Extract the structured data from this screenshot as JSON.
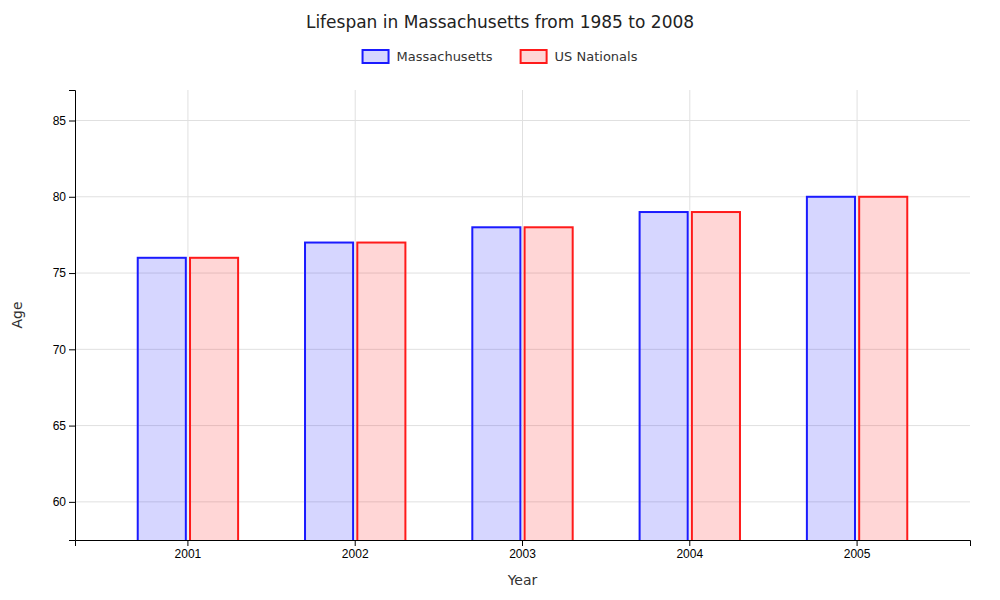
{
  "chart_data": {
    "type": "bar",
    "title": "Lifespan in Massachusetts from 1985 to 2008",
    "x_label": "Year",
    "y_label": "Age",
    "categories": [
      "2001",
      "2002",
      "2003",
      "2004",
      "2005"
    ],
    "series": [
      {
        "name": "Massachusetts",
        "color": "#1a1aff",
        "values": [
          76,
          77,
          78,
          79,
          80
        ]
      },
      {
        "name": "US Nationals",
        "color": "#ff1a1a",
        "values": [
          76,
          77,
          78,
          79,
          80
        ]
      }
    ],
    "ylim": [
      57.5,
      87
    ],
    "yticks": [
      60,
      65,
      70,
      75,
      80,
      85
    ],
    "grid": true,
    "legend": "top"
  }
}
